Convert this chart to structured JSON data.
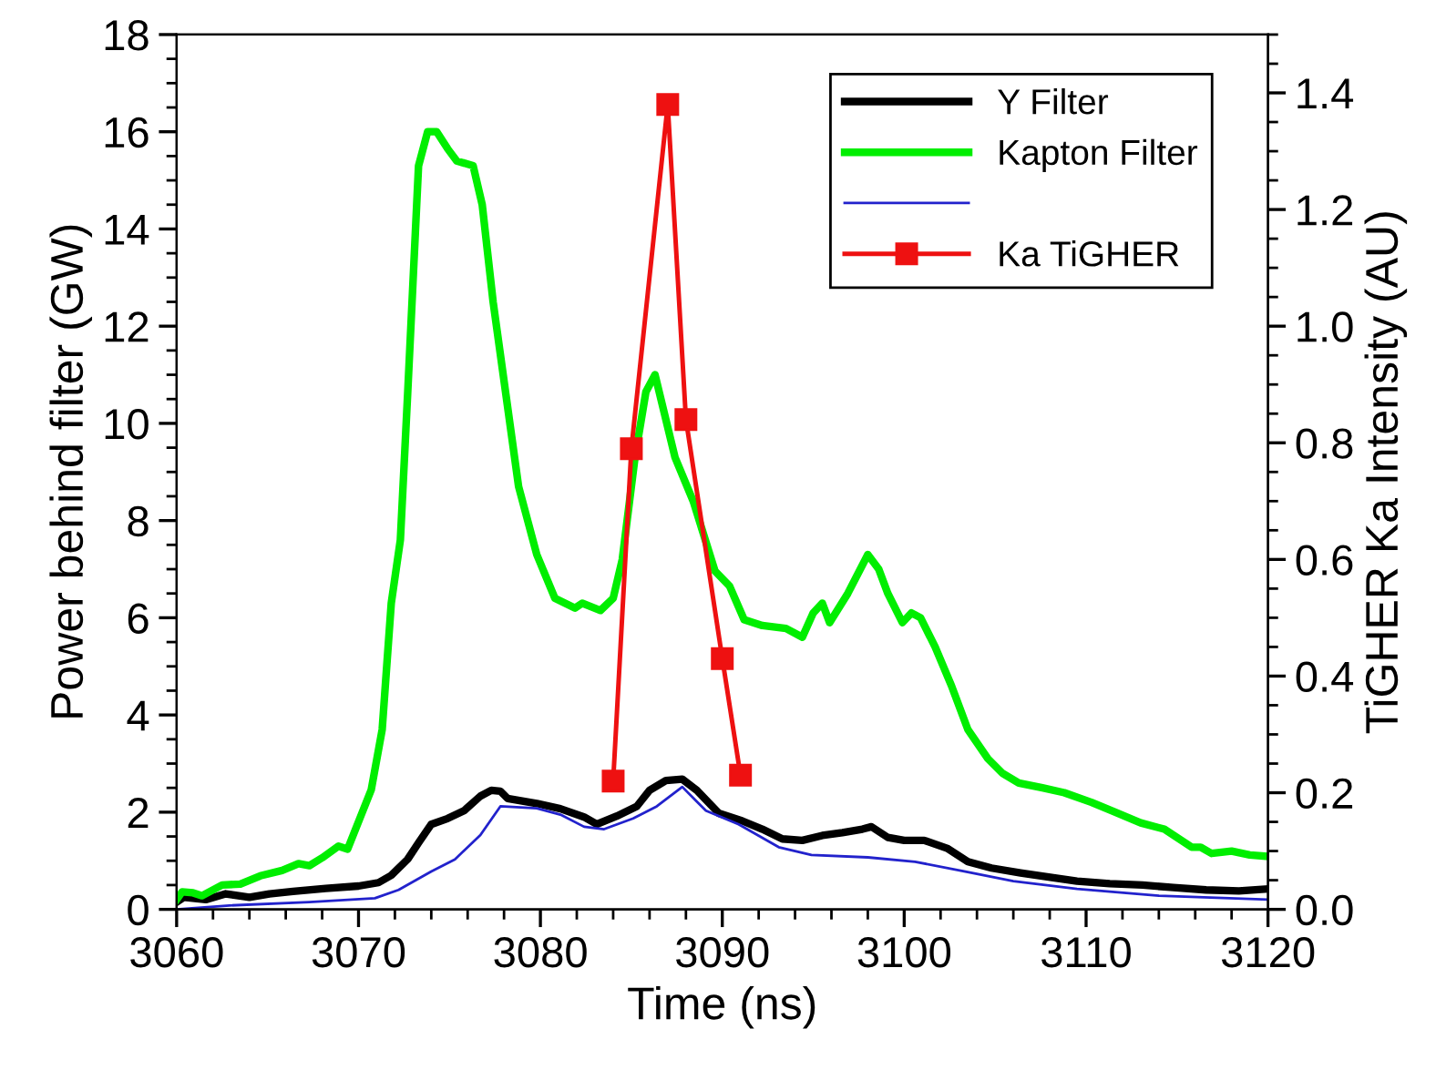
{
  "chart_data": {
    "type": "line",
    "xlabel": "Time (ns)",
    "ylabel": "Power behind filter (GW)",
    "y2label": "TiGHER Ka Intensity (AU)",
    "xlim": [
      3060,
      3120
    ],
    "xticks": [
      3060,
      3070,
      3080,
      3090,
      3100,
      3110,
      3120
    ],
    "ylim": [
      0,
      18
    ],
    "yticks": [
      0,
      2,
      4,
      6,
      8,
      10,
      12,
      14,
      16,
      18
    ],
    "y2lim": [
      0,
      1.5
    ],
    "y2ticks": [
      {
        "value": 0,
        "label": "0.0"
      },
      0.2,
      0.4,
      0.6,
      0.8,
      {
        "value": 1,
        "label": "1.0"
      },
      1.2,
      1.4
    ],
    "legend": "top right",
    "grid": false,
    "marker": "none",
    "line_style": "solid",
    "series": [
      {
        "name": "Y Filter",
        "color": "#000000",
        "x": [
          3060,
          3060.4,
          3061.6,
          3062.7,
          3064,
          3065.1,
          3066.4,
          3068.2,
          3070,
          3071.1,
          3071.8,
          3072.7,
          3073.3,
          3074,
          3074.9,
          3075.8,
          3076.7,
          3077.3,
          3077.8,
          3078.2,
          3079.8,
          3081.1,
          3082.4,
          3083.1,
          3084.2,
          3085.3,
          3086,
          3086.9,
          3087.8,
          3088.6,
          3089.8,
          3091.1,
          3092.2,
          3093.3,
          3094.4,
          3095.5,
          3096.6,
          3097.7,
          3098.2,
          3099.1,
          3100,
          3101.1,
          3102.4,
          3103.5,
          3104.8,
          3106.4,
          3108.2,
          3109.5,
          3111.3,
          3113.1,
          3114.8,
          3116.6,
          3118.4,
          3120
        ],
        "values": [
          0.15,
          0.25,
          0.2,
          0.32,
          0.25,
          0.32,
          0.37,
          0.43,
          0.48,
          0.55,
          0.7,
          1.03,
          1.37,
          1.75,
          1.87,
          2.03,
          2.33,
          2.45,
          2.43,
          2.28,
          2.18,
          2.07,
          1.9,
          1.75,
          1.92,
          2.12,
          2.45,
          2.65,
          2.68,
          2.45,
          1.98,
          1.82,
          1.65,
          1.45,
          1.42,
          1.52,
          1.58,
          1.65,
          1.7,
          1.48,
          1.42,
          1.42,
          1.25,
          0.98,
          0.85,
          0.75,
          0.65,
          0.58,
          0.53,
          0.5,
          0.45,
          0.4,
          0.38,
          0.42
        ]
      },
      {
        "name": "Kapton Filter",
        "color": "#00ee00",
        "x": [
          3060,
          3060.3,
          3060.9,
          3061.4,
          3062.5,
          3063.5,
          3064.6,
          3065.8,
          3066.7,
          3067.3,
          3068,
          3068.9,
          3069.4,
          3070.7,
          3071.3,
          3071.8,
          3072.3,
          3072.7,
          3073.3,
          3073.8,
          3074.3,
          3074.9,
          3075.4,
          3076.3,
          3076.8,
          3077.4,
          3078.1,
          3078.8,
          3079.8,
          3080.8,
          3081.9,
          3082.3,
          3083.3,
          3084,
          3084.5,
          3085.2,
          3085.8,
          3086.3,
          3087.4,
          3088.4,
          3089.6,
          3090.4,
          3091.2,
          3092.2,
          3093.5,
          3094.4,
          3095,
          3095.5,
          3095.9,
          3096.9,
          3098,
          3098.6,
          3099.1,
          3099.9,
          3100.4,
          3100.9,
          3101.7,
          3102.6,
          3103.5,
          3104.6,
          3105.4,
          3106.3,
          3107.6,
          3108.8,
          3110.3,
          3111.6,
          3113,
          3114.3,
          3115.8,
          3116.3,
          3116.9,
          3118,
          3119,
          3120
        ],
        "values": [
          0.2,
          0.36,
          0.34,
          0.28,
          0.5,
          0.52,
          0.69,
          0.8,
          0.94,
          0.9,
          1.06,
          1.3,
          1.24,
          2.46,
          3.7,
          6.3,
          7.6,
          10.6,
          15.3,
          16.0,
          16.0,
          15.65,
          15.4,
          15.3,
          14.5,
          12.5,
          10.6,
          8.7,
          7.3,
          6.4,
          6.2,
          6.3,
          6.15,
          6.4,
          7.2,
          9.3,
          10.65,
          11.0,
          9.3,
          8.4,
          6.96,
          6.65,
          5.96,
          5.84,
          5.78,
          5.6,
          6.1,
          6.3,
          5.9,
          6.5,
          7.3,
          7.0,
          6.5,
          5.9,
          6.1,
          6.0,
          5.4,
          4.6,
          3.7,
          3.1,
          2.8,
          2.6,
          2.5,
          2.4,
          2.2,
          2.0,
          1.78,
          1.65,
          1.28,
          1.28,
          1.15,
          1.2,
          1.12,
          1.09
        ]
      },
      {
        "color": "#2222cc",
        "x": [
          3060,
          3062.9,
          3067.3,
          3070.9,
          3072.2,
          3074,
          3075.3,
          3076.7,
          3077.8,
          3079.8,
          3081.1,
          3082.4,
          3083.5,
          3085.1,
          3086.4,
          3087.8,
          3089.1,
          3090.9,
          3093.1,
          3094.9,
          3098,
          3100.6,
          3103.3,
          3106,
          3109.5,
          3114,
          3120
        ],
        "values": [
          0,
          0.08,
          0.15,
          0.23,
          0.4,
          0.78,
          1.03,
          1.53,
          2.12,
          2.08,
          1.95,
          1.7,
          1.65,
          1.87,
          2.12,
          2.52,
          2.03,
          1.75,
          1.28,
          1.12,
          1.07,
          0.98,
          0.78,
          0.58,
          0.42,
          0.28,
          0.2
        ]
      },
      {
        "name": "Ka TiGHER",
        "color": "#ee1111",
        "axis": "y2",
        "marker": "square",
        "x": [
          3084,
          3085,
          3087,
          3088,
          3090,
          3091
        ],
        "values": [
          0.22,
          0.79,
          1.38,
          0.84,
          0.43,
          0.23
        ]
      }
    ]
  }
}
